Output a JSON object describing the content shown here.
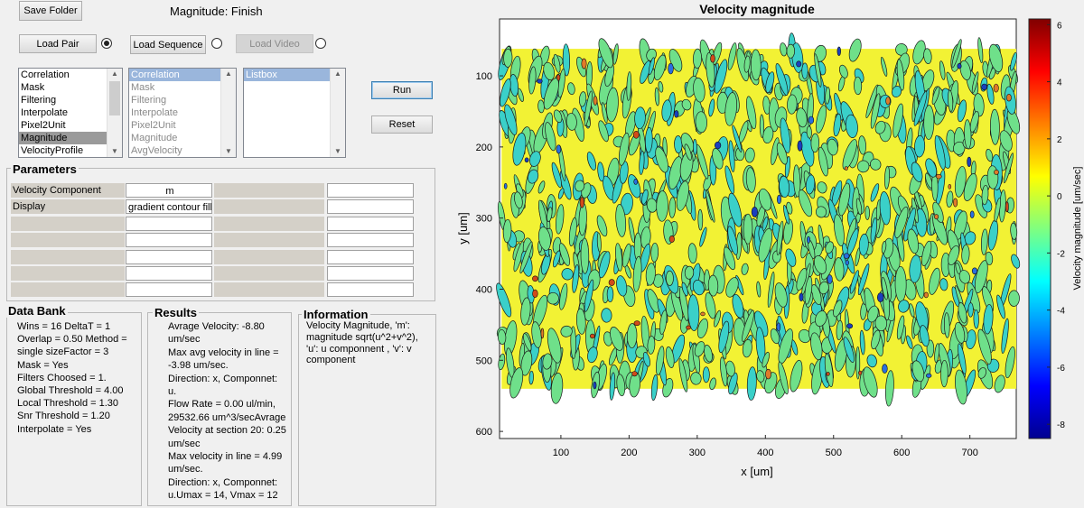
{
  "toolbar": {
    "save_folder": "Save Folder",
    "status": "Magnitude: Finish",
    "load_pair": "Load Pair",
    "load_sequence": "Load Sequence",
    "load_video": "Load Video",
    "run": "Run",
    "reset": "Reset"
  },
  "lists": {
    "steps": [
      "Correlation",
      "Mask",
      "Filtering",
      "Interpolate",
      "Pixel2Unit",
      "Magnitude",
      "VelocityProfile"
    ],
    "selected_step": "Magnitude",
    "chosen": [
      "Correlation",
      "Mask",
      "Filtering",
      "Interpolate",
      "Pixel2Unit",
      "Magnitude",
      "AvgVelocity"
    ],
    "listbox": [
      "Listbox"
    ]
  },
  "parameters": {
    "title": "Parameters",
    "rows": [
      {
        "label": "Velocity Component",
        "value": "m"
      },
      {
        "label": "Display",
        "value": "gradient contour fill"
      },
      {
        "label": "",
        "value": ""
      },
      {
        "label": "",
        "value": ""
      },
      {
        "label": "",
        "value": ""
      },
      {
        "label": "",
        "value": ""
      },
      {
        "label": "",
        "value": ""
      }
    ]
  },
  "databank": {
    "title": "Data Bank",
    "lines": [
      "Wins = 16  DeltaT = 1",
      "Overlap = 0.50  Method =",
      "single  sizeFactor = 3",
      "Mask = Yes",
      "Filters Choosed = 1.",
      "Global Threshold = 4.00",
      "Local Threshold = 1.30",
      "Snr Threshold = 1.20",
      "Interpolate = Yes"
    ]
  },
  "results": {
    "title": "Results",
    "lines": [
      "Avrage Velocity: -8.80",
      "um/sec",
      "Max avg velocity in line =",
      "-3.98 um/sec.",
      "Direction: x,  Componnet:",
      "u.",
      "Flow Rate = 0.00 ul/min,",
      "29532.66 um^3/secAvrage",
      "Velocity at section  20: 0.25",
      "um/sec",
      "Max velocity in line = 4.99",
      "um/sec.",
      "Direction: x,  Componnet:",
      "u.Umax = 14, Vmax = 12"
    ]
  },
  "information": {
    "title": "Information",
    "lines": [
      "Velocity Magnitude, 'm':",
      "magnitude sqrt(u^2+v^2),",
      "'u': u componnent , 'v': v",
      "component"
    ]
  },
  "chart_data": {
    "type": "heatmap",
    "title": "Velocity magnitude",
    "xlabel": "x [um]",
    "ylabel": "y [um]",
    "colorbar_label": "Velocity magnitude [um/sec]",
    "xlim": [
      10,
      768
    ],
    "ylim": [
      610,
      20
    ],
    "xticks": [
      100,
      200,
      300,
      400,
      500,
      600,
      700
    ],
    "yticks": [
      100,
      200,
      300,
      400,
      500,
      600
    ],
    "clim": [
      -8.5,
      6.2
    ],
    "cticks": [
      6,
      4,
      2,
      0,
      -2,
      -4,
      -6,
      -8
    ],
    "data_extent": {
      "x": [
        13,
        768
      ],
      "y": [
        62,
        540
      ]
    },
    "colormap": "jet",
    "dominant_colors": [
      "#f2f234",
      "#6fe08a",
      "#3ad0c9"
    ]
  }
}
